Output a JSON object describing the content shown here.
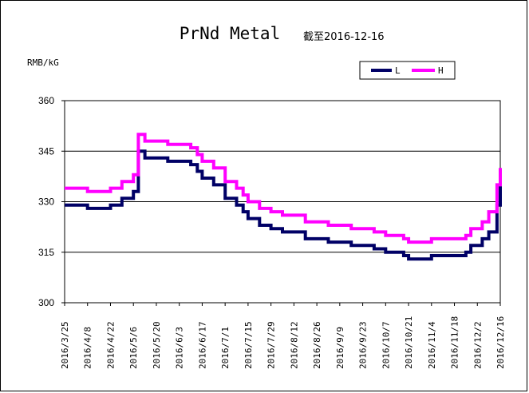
{
  "chart_data": {
    "type": "line",
    "title": "PrNd Metal",
    "subtitle": "截至2016-12-16",
    "ylabel": "RMB/kG",
    "ylim": [
      300,
      360
    ],
    "yticks": [
      300,
      315,
      330,
      345,
      360
    ],
    "grid": true,
    "legend_position": "top-right",
    "x_tick_labels": [
      "2016/3/25",
      "2016/4/8",
      "2016/4/22",
      "2016/5/6",
      "2016/5/20",
      "2016/6/3",
      "2016/6/17",
      "2016/7/1",
      "2016/7/15",
      "2016/7/29",
      "2016/8/12",
      "2016/8/26",
      "2016/9/9",
      "2016/9/23",
      "2016/10/7",
      "2016/10/21",
      "2016/11/4",
      "2016/11/18",
      "2016/12/2",
      "2016/12/16"
    ],
    "x": [
      "2016/3/25",
      "2016/4/1",
      "2016/4/8",
      "2016/4/15",
      "2016/4/22",
      "2016/4/29",
      "2016/5/6",
      "2016/5/9",
      "2016/5/13",
      "2016/5/20",
      "2016/5/27",
      "2016/6/3",
      "2016/6/10",
      "2016/6/14",
      "2016/6/17",
      "2016/6/24",
      "2016/7/1",
      "2016/7/8",
      "2016/7/12",
      "2016/7/15",
      "2016/7/22",
      "2016/7/29",
      "2016/8/5",
      "2016/8/12",
      "2016/8/19",
      "2016/8/26",
      "2016/9/2",
      "2016/9/9",
      "2016/9/16",
      "2016/9/23",
      "2016/9/30",
      "2016/10/7",
      "2016/10/14",
      "2016/10/18",
      "2016/10/21",
      "2016/10/28",
      "2016/11/4",
      "2016/11/11",
      "2016/11/18",
      "2016/11/25",
      "2016/11/28",
      "2016/12/2",
      "2016/12/5",
      "2016/12/9",
      "2016/12/14",
      "2016/12/16"
    ],
    "series": [
      {
        "name": "L",
        "color": "#000066",
        "values": [
          329,
          329,
          328,
          328,
          329,
          331,
          333,
          345,
          343,
          343,
          342,
          342,
          341,
          339,
          337,
          335,
          331,
          329,
          327,
          325,
          323,
          322,
          321,
          321,
          319,
          319,
          318,
          318,
          317,
          317,
          316,
          315,
          315,
          314,
          313,
          313,
          314,
          314,
          314,
          315,
          317,
          317,
          319,
          321,
          329,
          335
        ]
      },
      {
        "name": "H",
        "color": "#ff00ff",
        "values": [
          334,
          334,
          333,
          333,
          334,
          336,
          338,
          350,
          348,
          348,
          347,
          347,
          346,
          344,
          342,
          340,
          336,
          334,
          332,
          330,
          328,
          327,
          326,
          326,
          324,
          324,
          323,
          323,
          322,
          322,
          321,
          320,
          320,
          319,
          318,
          318,
          319,
          319,
          319,
          320,
          322,
          322,
          324,
          327,
          335,
          340
        ]
      }
    ]
  }
}
